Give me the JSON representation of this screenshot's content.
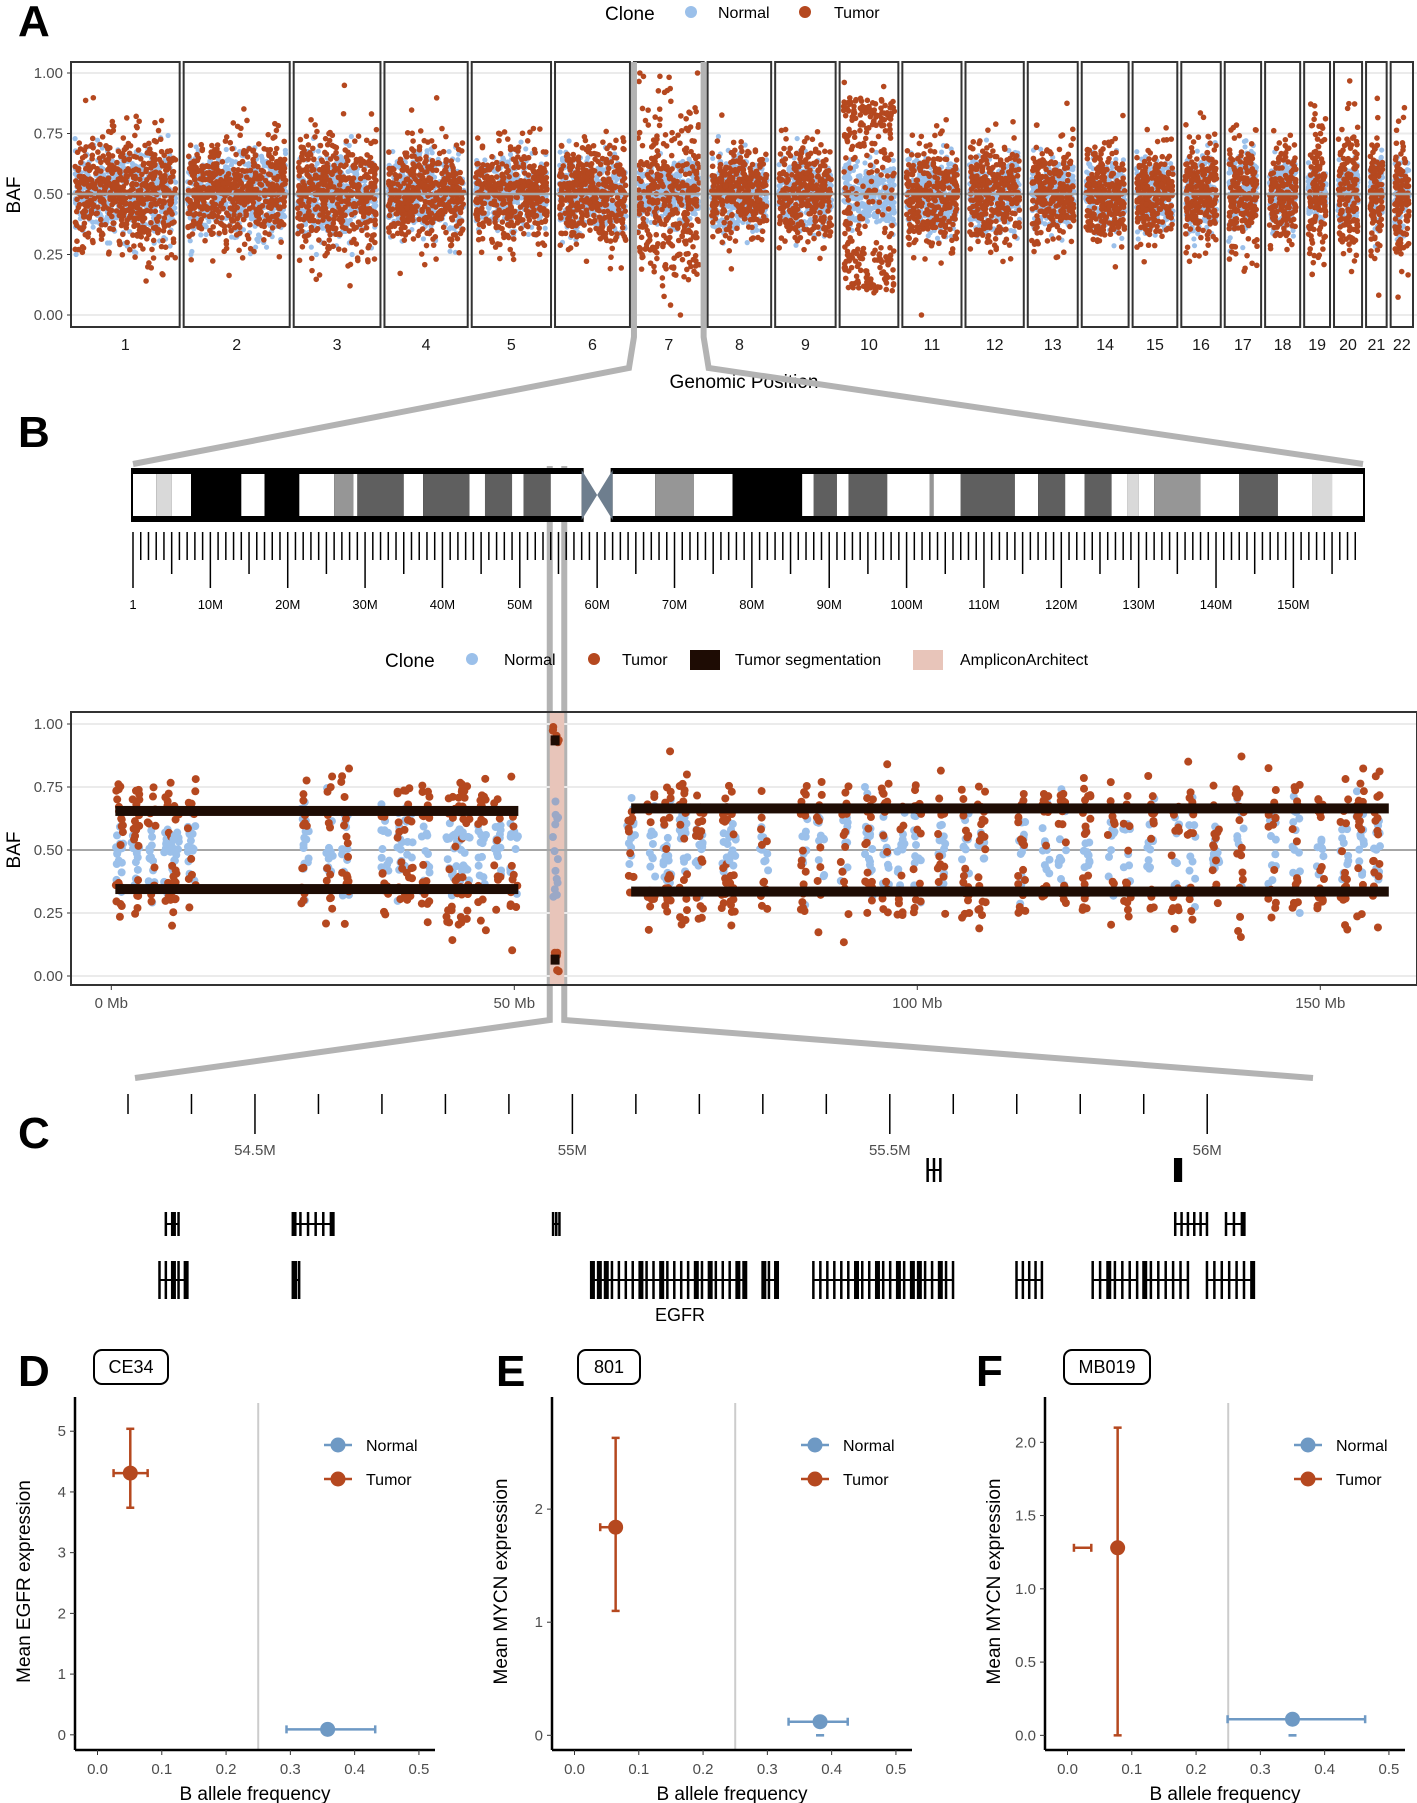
{
  "colors": {
    "normal": "#9BC0EA",
    "tumor": "#B5481F",
    "normal_summary": "#6E99C4",
    "tumor_summary": "#B5481F",
    "segmentation": "#1E0C04",
    "amplicon": "#E8C5BA",
    "zoom_connector": "#B3B3B3",
    "centromere": "#6E7E8E",
    "grid": "#EBEBEB",
    "mid_line": "#A6A6A6"
  },
  "panels": {
    "A": "A",
    "B": "B",
    "C": "C",
    "D": "D",
    "E": "E",
    "F": "F"
  },
  "chart_data": [
    {
      "id": "A",
      "type": "scatter",
      "title": "",
      "xlabel": "Genomic Position",
      "ylabel": "BAF",
      "ylim": [
        0,
        1
      ],
      "y_ticks": [
        "0.00",
        "0.25",
        "0.50",
        "0.75",
        "1.00"
      ],
      "grid": true,
      "legend": {
        "position": "top",
        "title": "Clone",
        "entries": [
          "Normal",
          "Tumor"
        ]
      },
      "chromosomes": [
        {
          "name": "1",
          "size": 248,
          "tumor_spread": 0.18,
          "normal_spread": 0.14
        },
        {
          "name": "2",
          "size": 242,
          "tumor_spread": 0.16,
          "normal_spread": 0.14
        },
        {
          "name": "3",
          "size": 198,
          "tumor_spread": 0.18,
          "normal_spread": 0.14
        },
        {
          "name": "4",
          "size": 190,
          "tumor_spread": 0.15,
          "normal_spread": 0.13
        },
        {
          "name": "5",
          "size": 181,
          "tumor_spread": 0.14,
          "normal_spread": 0.12
        },
        {
          "name": "6",
          "size": 171,
          "tumor_spread": 0.15,
          "normal_spread": 0.13
        },
        {
          "name": "7",
          "size": 159,
          "tumor_spread": 0.28,
          "normal_spread": 0.1
        },
        {
          "name": "8",
          "size": 145,
          "tumor_spread": 0.13,
          "normal_spread": 0.12
        },
        {
          "name": "9",
          "size": 138,
          "tumor_spread": 0.14,
          "normal_spread": 0.12
        },
        {
          "name": "10",
          "size": 134,
          "tumor_spread": 0.45,
          "normal_spread": 0.1
        },
        {
          "name": "11",
          "size": 135,
          "tumor_spread": 0.15,
          "normal_spread": 0.13
        },
        {
          "name": "12",
          "size": 133,
          "tumor_spread": 0.15,
          "normal_spread": 0.13
        },
        {
          "name": "13",
          "size": 114,
          "tumor_spread": 0.14,
          "normal_spread": 0.12
        },
        {
          "name": "14",
          "size": 107,
          "tumor_spread": 0.14,
          "normal_spread": 0.12
        },
        {
          "name": "15",
          "size": 102,
          "tumor_spread": 0.14,
          "normal_spread": 0.12
        },
        {
          "name": "16",
          "size": 90,
          "tumor_spread": 0.15,
          "normal_spread": 0.13
        },
        {
          "name": "17",
          "size": 83,
          "tumor_spread": 0.17,
          "normal_spread": 0.13
        },
        {
          "name": "18",
          "size": 80,
          "tumor_spread": 0.14,
          "normal_spread": 0.12
        },
        {
          "name": "19",
          "size": 59,
          "tumor_spread": 0.22,
          "normal_spread": 0.1
        },
        {
          "name": "20",
          "size": 64,
          "tumor_spread": 0.22,
          "normal_spread": 0.1
        },
        {
          "name": "21",
          "size": 47,
          "tumor_spread": 0.18,
          "normal_spread": 0.12
        },
        {
          "name": "22",
          "size": 51,
          "tumor_spread": 0.18,
          "normal_spread": 0.12
        }
      ],
      "zoomed_chromosome": "7"
    },
    {
      "id": "B-ideogram",
      "type": "ideogram",
      "chromosome": "7",
      "length_mb": 159,
      "centromere_mb": 60,
      "tick_labels": [
        "1",
        "10M",
        "20M",
        "30M",
        "40M",
        "50M",
        "60M",
        "70M",
        "80M",
        "90M",
        "100M",
        "110M",
        "120M",
        "130M",
        "140M",
        "150M"
      ],
      "bands": [
        {
          "start": 0,
          "end": 3,
          "stain": "gneg"
        },
        {
          "start": 3,
          "end": 5,
          "stain": "gpos25"
        },
        {
          "start": 5,
          "end": 7.5,
          "stain": "gneg"
        },
        {
          "start": 7.5,
          "end": 14,
          "stain": "gpos100"
        },
        {
          "start": 14,
          "end": 17,
          "stain": "gneg"
        },
        {
          "start": 17,
          "end": 21.5,
          "stain": "gpos100"
        },
        {
          "start": 21.5,
          "end": 26,
          "stain": "gneg"
        },
        {
          "start": 26,
          "end": 28.5,
          "stain": "gpos50"
        },
        {
          "start": 28.5,
          "end": 29,
          "stain": "gneg"
        },
        {
          "start": 29,
          "end": 35,
          "stain": "gpos75"
        },
        {
          "start": 35,
          "end": 37.5,
          "stain": "gneg"
        },
        {
          "start": 37.5,
          "end": 43.5,
          "stain": "gpos75"
        },
        {
          "start": 43.5,
          "end": 45.5,
          "stain": "gneg"
        },
        {
          "start": 45.5,
          "end": 49,
          "stain": "gpos75"
        },
        {
          "start": 49,
          "end": 50.5,
          "stain": "gneg"
        },
        {
          "start": 50.5,
          "end": 54,
          "stain": "gpos75"
        },
        {
          "start": 54,
          "end": 58,
          "stain": "gneg"
        },
        {
          "start": 58,
          "end": 60,
          "stain": "acen"
        },
        {
          "start": 60,
          "end": 62,
          "stain": "acen"
        },
        {
          "start": 62,
          "end": 67.5,
          "stain": "gneg"
        },
        {
          "start": 67.5,
          "end": 72.5,
          "stain": "gpos50"
        },
        {
          "start": 72.5,
          "end": 77.5,
          "stain": "gneg"
        },
        {
          "start": 77.5,
          "end": 86.5,
          "stain": "gpos100"
        },
        {
          "start": 86.5,
          "end": 88,
          "stain": "gneg"
        },
        {
          "start": 88,
          "end": 91,
          "stain": "gpos75"
        },
        {
          "start": 91,
          "end": 92.5,
          "stain": "gneg"
        },
        {
          "start": 92.5,
          "end": 97.5,
          "stain": "gpos75"
        },
        {
          "start": 97.5,
          "end": 103,
          "stain": "gneg"
        },
        {
          "start": 103,
          "end": 103.5,
          "stain": "gpos50"
        },
        {
          "start": 103.5,
          "end": 107,
          "stain": "gneg"
        },
        {
          "start": 107,
          "end": 114,
          "stain": "gpos75"
        },
        {
          "start": 114,
          "end": 117,
          "stain": "gneg"
        },
        {
          "start": 117,
          "end": 120.5,
          "stain": "gpos75"
        },
        {
          "start": 120.5,
          "end": 123,
          "stain": "gneg"
        },
        {
          "start": 123,
          "end": 126.5,
          "stain": "gpos75"
        },
        {
          "start": 126.5,
          "end": 128.5,
          "stain": "gneg"
        },
        {
          "start": 128.5,
          "end": 130,
          "stain": "gpos25"
        },
        {
          "start": 130,
          "end": 132,
          "stain": "gneg"
        },
        {
          "start": 132,
          "end": 138,
          "stain": "gpos50"
        },
        {
          "start": 138,
          "end": 143,
          "stain": "gneg"
        },
        {
          "start": 143,
          "end": 148,
          "stain": "gpos75"
        },
        {
          "start": 148,
          "end": 152.5,
          "stain": "gneg"
        },
        {
          "start": 152.5,
          "end": 155,
          "stain": "gpos25"
        },
        {
          "start": 155,
          "end": 159,
          "stain": "gneg"
        }
      ]
    },
    {
      "id": "B",
      "type": "scatter",
      "xlabel": "",
      "ylabel": "BAF",
      "xlim": [
        -5,
        162
      ],
      "ylim": [
        0,
        1
      ],
      "x_ticks": [
        {
          "value": 0,
          "label": "0 Mb"
        },
        {
          "value": 50,
          "label": "50 Mb"
        },
        {
          "value": 100,
          "label": "100 Mb"
        },
        {
          "value": 150,
          "label": "150 Mb"
        }
      ],
      "y_ticks": [
        "0.00",
        "0.25",
        "0.50",
        "0.75",
        "1.00"
      ],
      "grid": true,
      "legend": {
        "position": "top",
        "title": "Clone",
        "entries": [
          "Normal",
          "Tumor",
          "Tumor segmentation",
          "AmpliconArchitect"
        ]
      },
      "segments": [
        {
          "start": 0.5,
          "end": 50.5,
          "baf": 0.655
        },
        {
          "start": 0.5,
          "end": 50.5,
          "baf": 0.345
        },
        {
          "start": 64.5,
          "end": 158.5,
          "baf": 0.665
        },
        {
          "start": 64.5,
          "end": 158.5,
          "baf": 0.335
        },
        {
          "start": 55.0,
          "end": 55.3,
          "baf": 0.935
        },
        {
          "start": 55.0,
          "end": 55.3,
          "baf": 0.065
        }
      ],
      "amplicon_region": {
        "start": 54.4,
        "end": 56.2
      },
      "point_clusters_mb": [
        1,
        3,
        5,
        7,
        8,
        10,
        24,
        27,
        29,
        34,
        36,
        37,
        39,
        42,
        43,
        44,
        46,
        48,
        50,
        64.5,
        67,
        69,
        71,
        73,
        76,
        77,
        81,
        86,
        88,
        91,
        94,
        96,
        98,
        100,
        103,
        106,
        108,
        113,
        116,
        118,
        121,
        124,
        126,
        129,
        132,
        134,
        137,
        140,
        144,
        147,
        150,
        153,
        155,
        157
      ]
    },
    {
      "id": "C",
      "type": "gene-track",
      "xlim_mb": [
        54.3,
        56.08
      ],
      "tick_labels": [
        "54.5M",
        "55M",
        "55.5M",
        "56M"
      ],
      "gene_label": "EGFR"
    },
    {
      "id": "D",
      "type": "scatter",
      "sample": "CE34",
      "xlabel": "B allele frequency",
      "ylabel": "Mean EGFR expression",
      "xlim": [
        -0.035,
        0.525
      ],
      "ylim": [
        -0.25,
        5.3
      ],
      "x_ticks": [
        "0.0",
        "0.1",
        "0.2",
        "0.3",
        "0.4",
        "0.5"
      ],
      "y_ticks": [
        "0",
        "1",
        "2",
        "3",
        "4",
        "5"
      ],
      "vline": 0.25,
      "legend": {
        "position": "top-right",
        "entries": [
          "Normal",
          "Tumor"
        ]
      },
      "series": [
        {
          "name": "Normal",
          "x": 0.358,
          "y": 0.09,
          "xerr": [
            0.294,
            0.432
          ],
          "yerr": [
            0.08,
            0.1
          ]
        },
        {
          "name": "Tumor",
          "x": 0.051,
          "y": 4.31,
          "xerr": [
            0.025,
            0.078
          ],
          "yerr": [
            3.74,
            5.04
          ]
        }
      ]
    },
    {
      "id": "E",
      "type": "scatter",
      "sample": "801",
      "xlabel": "B allele frequency",
      "ylabel": "Mean MYCN expression",
      "xlim": [
        -0.035,
        0.525
      ],
      "ylim": [
        -0.13,
        2.85
      ],
      "x_ticks": [
        "0.0",
        "0.1",
        "0.2",
        "0.3",
        "0.4",
        "0.5"
      ],
      "y_ticks": [
        "0",
        "1",
        "2"
      ],
      "vline": 0.25,
      "legend": {
        "position": "top-right",
        "entries": [
          "Normal",
          "Tumor"
        ]
      },
      "series": [
        {
          "name": "Normal",
          "x": 0.382,
          "y": 0.12,
          "xerr": [
            0.333,
            0.425
          ],
          "yerr": [
            0.0,
            0.0
          ]
        },
        {
          "name": "Tumor",
          "x": 0.064,
          "y": 1.84,
          "xerr": [
            0.04,
            0.064
          ],
          "yerr": [
            1.1,
            2.63
          ]
        }
      ]
    },
    {
      "id": "F",
      "type": "scatter",
      "sample": "MB019",
      "xlabel": "B allele frequency",
      "ylabel": "Mean MYCN expression",
      "xlim": [
        -0.035,
        0.525
      ],
      "ylim": [
        -0.1,
        2.2
      ],
      "x_ticks": [
        "0.0",
        "0.1",
        "0.2",
        "0.3",
        "0.4",
        "0.5"
      ],
      "y_ticks": [
        "0.0",
        "0.5",
        "1.0",
        "1.5",
        "2.0"
      ],
      "vline": 0.25,
      "legend": {
        "position": "top-right",
        "entries": [
          "Normal",
          "Tumor"
        ]
      },
      "series": [
        {
          "name": "Normal",
          "x": 0.35,
          "y": 0.11,
          "xerr": [
            0.249,
            0.463
          ],
          "yerr": [
            0.0,
            0.0
          ]
        },
        {
          "name": "Tumor",
          "x": 0.078,
          "y": 1.28,
          "xerr": [
            0.01,
            0.037
          ],
          "yerr": [
            0.0,
            2.1
          ]
        }
      ]
    }
  ]
}
